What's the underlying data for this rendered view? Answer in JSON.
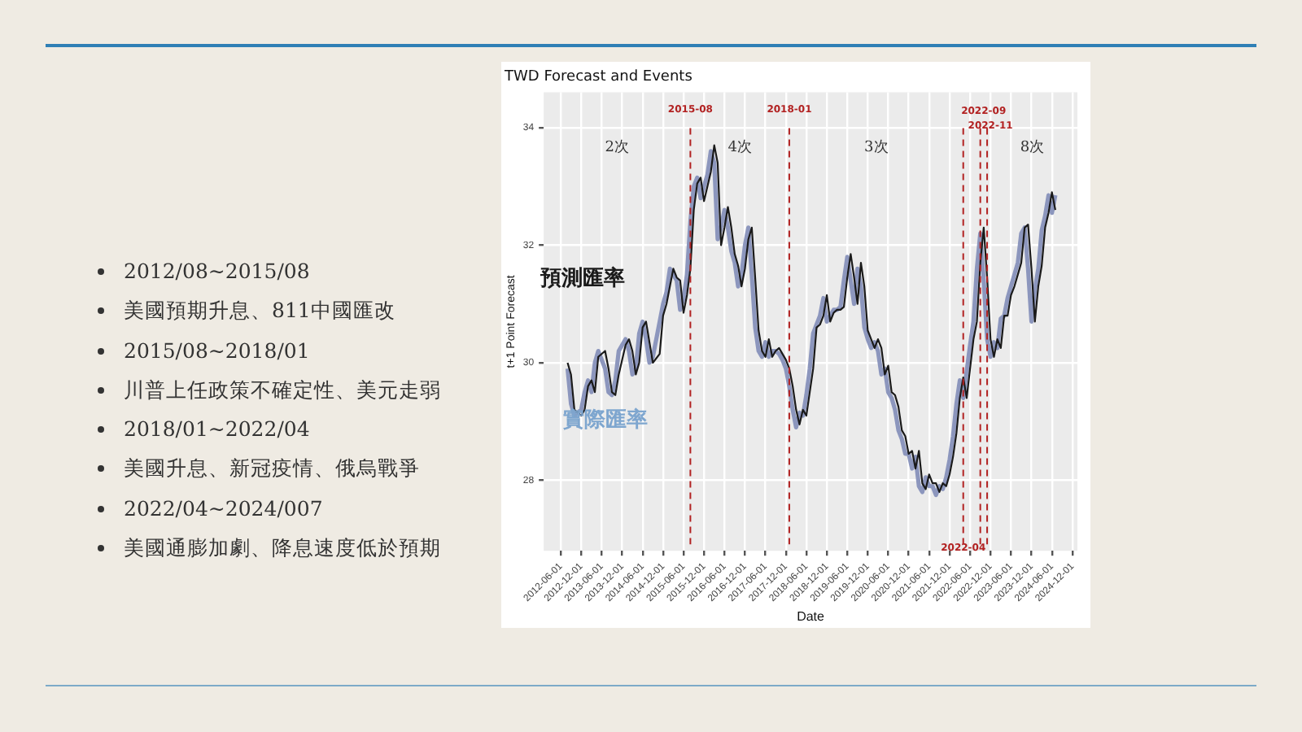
{
  "chart_data": {
    "type": "line",
    "title": "TWD Forecast and Events",
    "xlabel": "Date",
    "ylabel": "t+1 Point Forecast",
    "x": [
      "2012-08",
      "2012-09",
      "2012-10",
      "2012-12",
      "2013-01",
      "2013-02",
      "2013-03",
      "2013-04",
      "2013-05",
      "2013-07",
      "2013-08",
      "2013-09",
      "2013-10",
      "2013-11",
      "2014-01",
      "2014-02",
      "2014-03",
      "2014-04",
      "2014-05",
      "2014-06",
      "2014-07",
      "2014-08",
      "2014-09",
      "2014-11",
      "2014-12",
      "2015-01",
      "2015-02",
      "2015-03",
      "2015-04",
      "2015-05",
      "2015-06",
      "2015-07",
      "2015-08",
      "2015-09",
      "2015-10",
      "2015-11",
      "2015-12",
      "2016-01",
      "2016-02",
      "2016-03",
      "2016-04",
      "2016-05",
      "2016-06",
      "2016-07",
      "2016-08",
      "2016-09",
      "2016-10",
      "2016-11",
      "2016-12",
      "2017-01",
      "2017-02",
      "2017-03",
      "2017-04",
      "2017-05",
      "2017-06",
      "2017-07",
      "2017-08",
      "2017-09",
      "2017-10",
      "2017-11",
      "2017-12",
      "2018-01",
      "2018-02",
      "2018-03",
      "2018-04",
      "2018-05",
      "2018-06",
      "2018-07",
      "2018-08",
      "2018-09",
      "2018-10",
      "2018-11",
      "2018-12",
      "2019-01",
      "2019-02",
      "2019-03",
      "2019-04",
      "2019-05",
      "2019-06",
      "2019-07",
      "2019-08",
      "2019-09",
      "2019-10",
      "2019-11",
      "2019-12",
      "2020-01",
      "2020-02",
      "2020-03",
      "2020-04",
      "2020-05",
      "2020-06",
      "2020-07",
      "2020-08",
      "2020-09",
      "2020-10",
      "2020-11",
      "2020-12",
      "2021-01",
      "2021-02",
      "2021-03",
      "2021-04",
      "2021-05",
      "2021-06",
      "2021-07",
      "2021-08",
      "2021-09",
      "2021-10",
      "2021-11",
      "2021-12",
      "2022-01",
      "2022-02",
      "2022-03",
      "2022-04",
      "2022-05",
      "2022-06",
      "2022-07",
      "2022-08",
      "2022-09",
      "2022-10",
      "2022-11",
      "2022-12",
      "2023-01",
      "2023-02",
      "2023-03",
      "2023-04",
      "2023-05",
      "2023-06",
      "2023-07",
      "2023-08",
      "2023-09",
      "2023-10",
      "2023-11",
      "2023-12",
      "2024-01",
      "2024-02",
      "2024-03",
      "2024-04",
      "2024-05",
      "2024-06",
      "2024-07"
    ],
    "series": [
      {
        "name": "預測匯率",
        "color": "#1a1a1a",
        "values": [
          30.0,
          29.8,
          29.2,
          29.1,
          29.2,
          29.6,
          29.7,
          29.5,
          30.1,
          30.2,
          29.9,
          29.5,
          29.45,
          29.8,
          30.3,
          30.4,
          30.2,
          29.8,
          30.0,
          30.6,
          30.7,
          30.35,
          30.0,
          30.15,
          30.8,
          31.0,
          31.3,
          31.6,
          31.45,
          31.4,
          30.85,
          31.15,
          31.6,
          32.6,
          33.05,
          33.15,
          32.75,
          33.0,
          33.25,
          33.7,
          33.4,
          32.0,
          32.3,
          32.65,
          32.3,
          31.85,
          31.65,
          31.3,
          31.6,
          32.1,
          32.3,
          31.45,
          30.55,
          30.2,
          30.1,
          30.4,
          30.1,
          30.2,
          30.25,
          30.15,
          30.05,
          29.9,
          29.6,
          29.2,
          28.95,
          29.2,
          29.1,
          29.5,
          29.9,
          30.6,
          30.65,
          30.8,
          31.15,
          30.7,
          30.85,
          30.9,
          30.9,
          30.95,
          31.45,
          31.85,
          31.45,
          31.0,
          31.7,
          31.3,
          30.55,
          30.4,
          30.25,
          30.4,
          30.25,
          29.8,
          29.95,
          29.5,
          29.45,
          29.25,
          28.85,
          28.75,
          28.45,
          28.5,
          28.2,
          28.5,
          27.95,
          27.85,
          28.1,
          27.95,
          27.95,
          27.8,
          27.95,
          27.9,
          28.1,
          28.4,
          28.8,
          29.4,
          29.75,
          29.4,
          29.9,
          30.4,
          30.7,
          31.7,
          32.3,
          31.45,
          30.4,
          30.1,
          30.4,
          30.25,
          30.8,
          30.8,
          31.15,
          31.3,
          31.5,
          31.7,
          32.3,
          32.35,
          31.6,
          30.7,
          31.3,
          31.65,
          32.3,
          32.55,
          32.9,
          32.6
        ]
      },
      {
        "name": "實際匯率",
        "color": "#8c96bd",
        "values": [
          29.9,
          29.3,
          29.1,
          29.2,
          29.5,
          29.7,
          29.5,
          30.0,
          30.2,
          29.9,
          29.5,
          29.45,
          29.7,
          30.2,
          30.4,
          30.2,
          29.8,
          29.9,
          30.5,
          30.7,
          30.4,
          30.0,
          30.1,
          30.7,
          31.0,
          31.2,
          31.6,
          31.5,
          31.4,
          30.9,
          31.1,
          31.5,
          32.4,
          33.0,
          33.15,
          32.8,
          33.0,
          33.2,
          33.6,
          33.4,
          32.1,
          32.3,
          32.6,
          32.3,
          31.9,
          31.7,
          31.3,
          31.5,
          32.0,
          32.3,
          31.5,
          30.6,
          30.2,
          30.1,
          30.35,
          30.1,
          30.2,
          30.2,
          30.15,
          30.05,
          29.9,
          29.6,
          29.2,
          28.9,
          29.15,
          29.1,
          29.45,
          29.9,
          30.5,
          30.65,
          30.8,
          31.1,
          30.7,
          30.8,
          30.9,
          30.9,
          30.95,
          31.4,
          31.8,
          31.4,
          31.0,
          31.6,
          31.3,
          30.6,
          30.4,
          30.25,
          30.35,
          30.2,
          29.8,
          29.9,
          29.5,
          29.4,
          29.2,
          28.85,
          28.7,
          28.45,
          28.45,
          28.2,
          28.4,
          27.9,
          27.8,
          28.05,
          27.9,
          27.9,
          27.75,
          27.9,
          27.85,
          28.05,
          28.35,
          28.75,
          29.3,
          29.7,
          29.4,
          29.85,
          30.3,
          30.7,
          31.6,
          32.2,
          31.4,
          30.4,
          30.1,
          30.35,
          30.25,
          30.75,
          30.8,
          31.1,
          31.3,
          31.5,
          31.7,
          32.2,
          32.3,
          31.6,
          30.7,
          31.25,
          31.6,
          32.25,
          32.5,
          32.85,
          32.55,
          32.85
        ]
      }
    ],
    "xlim": [
      "2012-01-01",
      "2025-01-15"
    ],
    "xticks": [
      "2012-06-01",
      "2012-12-01",
      "2013-06-01",
      "2013-12-01",
      "2014-06-01",
      "2014-12-01",
      "2015-06-01",
      "2015-12-01",
      "2016-06-01",
      "2016-12-01",
      "2017-06-01",
      "2017-12-01",
      "2018-06-01",
      "2018-12-01",
      "2019-06-01",
      "2019-12-01",
      "2020-06-01",
      "2020-12-01",
      "2021-06-01",
      "2021-12-01",
      "2022-06-01",
      "2022-12-01",
      "2023-06-01",
      "2023-12-01",
      "2024-06-01",
      "2024-12-01"
    ],
    "ylim": [
      26.8,
      34.6
    ],
    "yticks": [
      28,
      30,
      32,
      34
    ],
    "grid": true,
    "legend": false,
    "ref_lines": [
      {
        "axis": "x",
        "value": "2015-08",
        "label": "2015-08",
        "color": "#b22222",
        "line_style": "dashed"
      },
      {
        "axis": "x",
        "value": "2018-01",
        "label": "2018-01",
        "color": "#b22222",
        "line_style": "dashed"
      },
      {
        "axis": "x",
        "value": "2022-04",
        "label": "2022-04",
        "color": "#b22222",
        "line_style": "dashed"
      },
      {
        "axis": "x",
        "value": "2022-09",
        "label": "2022-09",
        "color": "#b22222",
        "line_style": "dashed"
      },
      {
        "axis": "x",
        "value": "2022-11",
        "label": "2022-11",
        "color": "#b22222",
        "line_style": "dashed"
      }
    ],
    "annotations": [
      "2次",
      "4次",
      "3次",
      "8次",
      "2012/08~2015/08",
      "美國預期升息、811中國匯改",
      "2015/08~2018/01",
      "川普上任政策不確定性、美元走弱",
      "2018/01~2022/04",
      "美國升息、新冠疫情、俄烏戰爭",
      "2022/04~2024/007",
      "美國通膨加劇、降息速度低於預期"
    ]
  }
}
